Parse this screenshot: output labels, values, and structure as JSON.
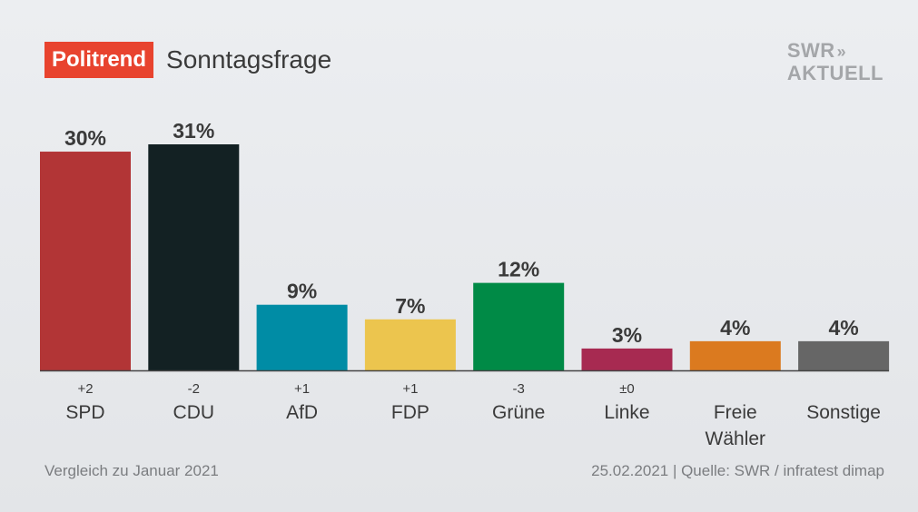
{
  "header": {
    "badge": "Politrend",
    "title": "Sonntagsfrage",
    "logo_line1": "SWR",
    "logo_arrows": "»",
    "logo_line2": "AKTUELL"
  },
  "footer": {
    "left": "Vergleich zu Januar 2021",
    "right": "25.02.2021 | Quelle: SWR / infratest dimap"
  },
  "colors": {
    "badge": "#e8432e",
    "value_text": "#3a3a3a",
    "category_text": "#3a3a3a",
    "axis": "#444444"
  },
  "chart_data": {
    "type": "bar",
    "title": "Sonntagsfrage",
    "categories": [
      "SPD",
      "CDU",
      "AfD",
      "FDP",
      "Grüne",
      "Linke",
      "Freie\nWähler",
      "Sonstige"
    ],
    "values": [
      30,
      31,
      9,
      7,
      12,
      3,
      4,
      4
    ],
    "value_labels": [
      "30%",
      "31%",
      "9%",
      "7%",
      "12%",
      "3%",
      "4%",
      "4%"
    ],
    "changes": [
      "+2",
      "-2",
      "+1",
      "+1",
      "-3",
      "±0",
      "",
      ""
    ],
    "bar_colors": [
      "#b23536",
      "#132123",
      "#008ca5",
      "#ecc54e",
      "#008a46",
      "#a72a51",
      "#db7a1f",
      "#666666"
    ],
    "ylim": [
      0,
      31
    ],
    "grid": false,
    "legend": "none"
  }
}
